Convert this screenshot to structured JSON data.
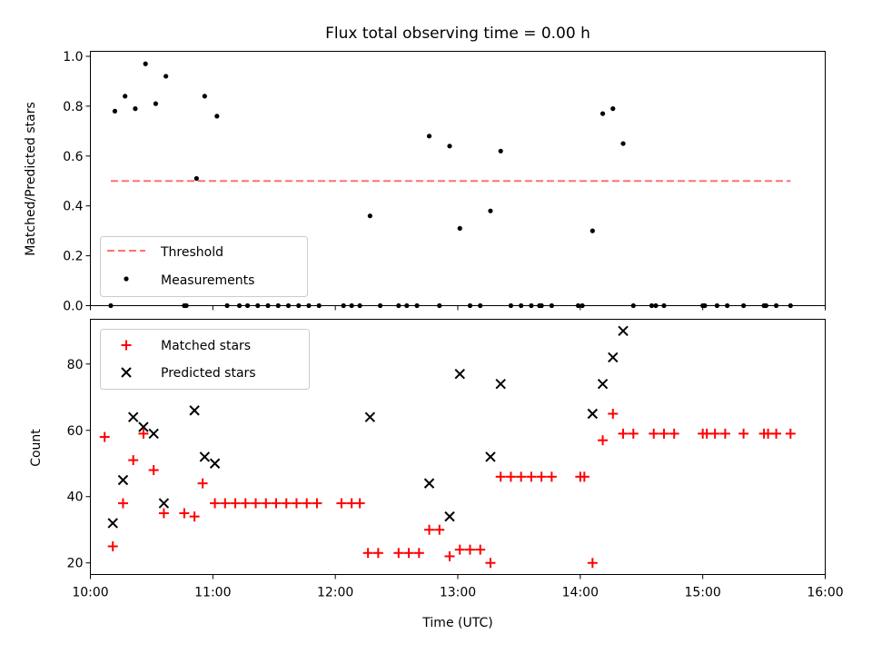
{
  "title": "Flux total observing time = 0.00 h",
  "xlabel": "Time (UTC)",
  "x_ticks": [
    "10:00",
    "11:00",
    "12:00",
    "13:00",
    "14:00",
    "15:00",
    "16:00"
  ],
  "colors": {
    "threshold": "#ff7070",
    "measurements": "#000000",
    "matched": "#ff0000",
    "predicted": "#000000"
  },
  "chart_data": [
    {
      "type": "scatter",
      "ylabel": "Matched/Predicted stars",
      "xlim": [
        "10:00",
        "16:00"
      ],
      "ylim": [
        0,
        1.02
      ],
      "y_ticks": [
        "0.0",
        "0.2",
        "0.4",
        "0.6",
        "0.8",
        "1.0"
      ],
      "legend": {
        "placement": "lower-left",
        "entries": [
          "Threshold",
          "Measurements"
        ]
      },
      "threshold": {
        "name": "Threshold",
        "y": 0.5,
        "x_start": "10:10",
        "x_end": "15:43",
        "style": "dashed"
      },
      "series": [
        {
          "name": "Measurements",
          "points": [
            [
              "10:10",
              0.0
            ],
            [
              "10:12",
              0.78
            ],
            [
              "10:17",
              0.84
            ],
            [
              "10:22",
              0.79
            ],
            [
              "10:27",
              0.97
            ],
            [
              "10:32",
              0.81
            ],
            [
              "10:37",
              0.92
            ],
            [
              "10:46",
              0.0
            ],
            [
              "10:47",
              0.0
            ],
            [
              "10:52",
              0.51
            ],
            [
              "10:56",
              0.84
            ],
            [
              "11:02",
              0.76
            ],
            [
              "11:07",
              0.0
            ],
            [
              "11:13",
              0.0
            ],
            [
              "11:17",
              0.0
            ],
            [
              "11:22",
              0.0
            ],
            [
              "11:27",
              0.0
            ],
            [
              "11:32",
              0.0
            ],
            [
              "11:37",
              0.0
            ],
            [
              "11:42",
              0.0
            ],
            [
              "11:47",
              0.0
            ],
            [
              "11:52",
              0.0
            ],
            [
              "12:04",
              0.0
            ],
            [
              "12:08",
              0.0
            ],
            [
              "12:12",
              0.0
            ],
            [
              "12:17",
              0.36
            ],
            [
              "12:22",
              0.0
            ],
            [
              "12:31",
              0.0
            ],
            [
              "12:35",
              0.0
            ],
            [
              "12:40",
              0.0
            ],
            [
              "12:46",
              0.68
            ],
            [
              "12:51",
              0.0
            ],
            [
              "12:56",
              0.64
            ],
            [
              "13:01",
              0.31
            ],
            [
              "13:06",
              0.0
            ],
            [
              "13:11",
              0.0
            ],
            [
              "13:16",
              0.38
            ],
            [
              "13:21",
              0.62
            ],
            [
              "13:26",
              0.0
            ],
            [
              "13:31",
              0.0
            ],
            [
              "13:36",
              0.0
            ],
            [
              "13:40",
              0.0
            ],
            [
              "13:41",
              0.0
            ],
            [
              "13:46",
              0.0
            ],
            [
              "13:59",
              0.0
            ],
            [
              "14:01",
              0.0
            ],
            [
              "14:06",
              0.3
            ],
            [
              "14:11",
              0.77
            ],
            [
              "14:16",
              0.79
            ],
            [
              "14:21",
              0.65
            ],
            [
              "14:26",
              0.0
            ],
            [
              "14:35",
              0.0
            ],
            [
              "14:37",
              0.0
            ],
            [
              "14:41",
              0.0
            ],
            [
              "15:00",
              0.0
            ],
            [
              "15:01",
              0.0
            ],
            [
              "15:07",
              0.0
            ],
            [
              "15:12",
              0.0
            ],
            [
              "15:20",
              0.0
            ],
            [
              "15:30",
              0.0
            ],
            [
              "15:31",
              0.0
            ],
            [
              "15:36",
              0.0
            ],
            [
              "15:43",
              0.0
            ]
          ]
        }
      ]
    },
    {
      "type": "scatter",
      "ylabel": "Count",
      "xlim": [
        "10:00",
        "16:00"
      ],
      "ylim": [
        16.5,
        93.5
      ],
      "y_ticks": [
        "20",
        "40",
        "60",
        "80"
      ],
      "legend": {
        "placement": "upper-left",
        "entries": [
          "Matched stars",
          "Predicted stars"
        ]
      },
      "series": [
        {
          "name": "Matched stars",
          "marker": "plus",
          "points": [
            [
              "10:07",
              58
            ],
            [
              "10:11",
              25
            ],
            [
              "10:16",
              38
            ],
            [
              "10:21",
              51
            ],
            [
              "10:26",
              59
            ],
            [
              "10:31",
              48
            ],
            [
              "10:36",
              35
            ],
            [
              "10:46",
              35
            ],
            [
              "10:51",
              34
            ],
            [
              "10:55",
              44
            ],
            [
              "11:01",
              38
            ],
            [
              "11:06",
              38
            ],
            [
              "11:11",
              38
            ],
            [
              "11:16",
              38
            ],
            [
              "11:21",
              38
            ],
            [
              "11:26",
              38
            ],
            [
              "11:31",
              38
            ],
            [
              "11:36",
              38
            ],
            [
              "11:41",
              38
            ],
            [
              "11:46",
              38
            ],
            [
              "11:51",
              38
            ],
            [
              "12:03",
              38
            ],
            [
              "12:08",
              38
            ],
            [
              "12:12",
              38
            ],
            [
              "12:16",
              23
            ],
            [
              "12:21",
              23
            ],
            [
              "12:31",
              23
            ],
            [
              "12:36",
              23
            ],
            [
              "12:41",
              23
            ],
            [
              "12:46",
              30
            ],
            [
              "12:51",
              30
            ],
            [
              "12:56",
              22
            ],
            [
              "13:01",
              24
            ],
            [
              "13:06",
              24
            ],
            [
              "13:11",
              24
            ],
            [
              "13:16",
              20
            ],
            [
              "13:21",
              46
            ],
            [
              "13:26",
              46
            ],
            [
              "13:31",
              46
            ],
            [
              "13:36",
              46
            ],
            [
              "13:41",
              46
            ],
            [
              "13:46",
              46
            ],
            [
              "14:00",
              46
            ],
            [
              "14:02",
              46
            ],
            [
              "14:06",
              20
            ],
            [
              "14:11",
              57
            ],
            [
              "14:16",
              65
            ],
            [
              "14:21",
              59
            ],
            [
              "14:26",
              59
            ],
            [
              "14:36",
              59
            ],
            [
              "14:41",
              59
            ],
            [
              "14:46",
              59
            ],
            [
              "15:00",
              59
            ],
            [
              "15:02",
              59
            ],
            [
              "15:06",
              59
            ],
            [
              "15:11",
              59
            ],
            [
              "15:20",
              59
            ],
            [
              "15:30",
              59
            ],
            [
              "15:32",
              59
            ],
            [
              "15:36",
              59
            ],
            [
              "15:43",
              59
            ]
          ]
        },
        {
          "name": "Predicted stars",
          "marker": "x",
          "points": [
            [
              "10:11",
              32
            ],
            [
              "10:16",
              45
            ],
            [
              "10:21",
              64
            ],
            [
              "10:26",
              61
            ],
            [
              "10:31",
              59
            ],
            [
              "10:36",
              38
            ],
            [
              "10:51",
              66
            ],
            [
              "10:56",
              52
            ],
            [
              "11:01",
              50
            ],
            [
              "12:17",
              64
            ],
            [
              "12:46",
              44
            ],
            [
              "12:56",
              34
            ],
            [
              "13:01",
              77
            ],
            [
              "13:16",
              52
            ],
            [
              "13:21",
              74
            ],
            [
              "14:06",
              65
            ],
            [
              "14:11",
              74
            ],
            [
              "14:16",
              82
            ],
            [
              "14:21",
              90
            ]
          ]
        }
      ]
    }
  ]
}
